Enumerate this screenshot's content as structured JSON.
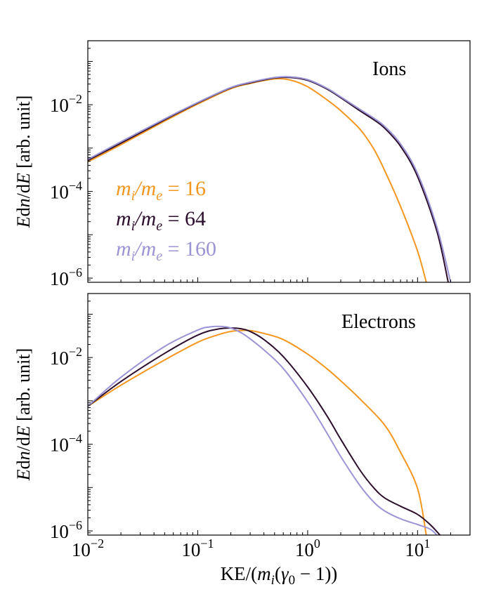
{
  "chart_data": [
    {
      "type": "line",
      "panel": "top",
      "title": "Ions",
      "ylabel": "Edn/dE [arb. unit]",
      "xlabel": "",
      "xscale": "log",
      "yscale": "log",
      "xlim": [
        0.01,
        30
      ],
      "ylim": [
        8e-07,
        0.3
      ],
      "yticks": [
        {
          "value": 0.01,
          "label": "10",
          "exp": "−2"
        },
        {
          "value": 0.0001,
          "label": "10",
          "exp": "−4"
        },
        {
          "value": 1e-06,
          "label": "10",
          "exp": "−6"
        }
      ],
      "legend_position": "center-left",
      "series": [
        {
          "name": "m_i/m_e = 16",
          "label_base": "m",
          "label_sub1": "i",
          "label_mid": "/m",
          "label_sub2": "e",
          "label_value": " = 16",
          "color": "#f5961e",
          "x": [
            0.01,
            0.02,
            0.05,
            0.1,
            0.2,
            0.3,
            0.5,
            0.7,
            1.0,
            1.5,
            2.0,
            3.0,
            4.0,
            5.0,
            7.0,
            10.0,
            12.0
          ],
          "y": [
            0.00048,
            0.0012,
            0.0042,
            0.0104,
            0.0235,
            0.031,
            0.0395,
            0.037,
            0.026,
            0.013,
            0.0073,
            0.0027,
            0.00095,
            0.00031,
            4.5e-05,
            4.2e-06,
            8e-07
          ]
        },
        {
          "name": "m_i/m_e = 64",
          "label_base": "m",
          "label_sub1": "i",
          "label_mid": "/m",
          "label_sub2": "e",
          "label_value": " = 64",
          "color": "#2d0f2d",
          "x": [
            0.01,
            0.02,
            0.05,
            0.1,
            0.2,
            0.3,
            0.5,
            0.7,
            1.0,
            1.5,
            2.0,
            3.0,
            4.0,
            5.0,
            7.0,
            10.0,
            15.0,
            19.0
          ],
          "y": [
            0.00052,
            0.0013,
            0.0045,
            0.011,
            0.0245,
            0.032,
            0.0415,
            0.0425,
            0.0365,
            0.023,
            0.0145,
            0.0072,
            0.0045,
            0.0029,
            0.0011,
            0.00022,
            1.2e-05,
            8e-07
          ]
        },
        {
          "name": "m_i/m_e = 160",
          "label_base": "m",
          "label_sub1": "i",
          "label_mid": "/m",
          "label_sub2": "e",
          "label_value": " = 160",
          "color": "#9b94d6",
          "x": [
            0.01,
            0.02,
            0.05,
            0.1,
            0.2,
            0.3,
            0.5,
            0.7,
            1.0,
            1.5,
            2.0,
            3.0,
            4.0,
            5.0,
            7.0,
            10.0,
            15.0,
            20.0
          ],
          "y": [
            0.00055,
            0.0014,
            0.0047,
            0.0113,
            0.025,
            0.033,
            0.0425,
            0.044,
            0.038,
            0.024,
            0.0152,
            0.0078,
            0.0049,
            0.0032,
            0.00125,
            0.00026,
            1.5e-05,
            8e-07
          ]
        }
      ]
    },
    {
      "type": "line",
      "panel": "bottom",
      "title": "Electrons",
      "ylabel": "Edn/dE [arb. unit]",
      "xlabel": "KE/(m_i(γ0 − 1))",
      "xscale": "log",
      "yscale": "log",
      "xlim": [
        0.01,
        30
      ],
      "ylim": [
        8e-07,
        0.3
      ],
      "xticks": [
        {
          "value": 0.01,
          "label": "10",
          "exp": "−2"
        },
        {
          "value": 0.1,
          "label": "10",
          "exp": "−1"
        },
        {
          "value": 1,
          "label": "10",
          "exp": "0"
        },
        {
          "value": 10,
          "label": "10",
          "exp": "1"
        }
      ],
      "yticks": [
        {
          "value": 0.01,
          "label": "10",
          "exp": "−2"
        },
        {
          "value": 0.0001,
          "label": "10",
          "exp": "−4"
        },
        {
          "value": 1e-06,
          "label": "10",
          "exp": "−6"
        }
      ],
      "series": [
        {
          "name": "m_i/m_e = 16",
          "color": "#f5961e",
          "x": [
            0.01,
            0.02,
            0.05,
            0.1,
            0.15,
            0.2,
            0.25,
            0.3,
            0.4,
            0.6,
            1.0,
            1.5,
            2.0,
            3.0,
            5.0,
            7.0,
            10.0,
            12.0
          ],
          "y": [
            0.00075,
            0.0023,
            0.0088,
            0.0225,
            0.033,
            0.04,
            0.042,
            0.042,
            0.036,
            0.026,
            0.012,
            0.0055,
            0.0029,
            0.0011,
            0.00028,
            6.5e-05,
            9.5e-06,
            8e-07
          ]
        },
        {
          "name": "m_i/m_e = 64",
          "color": "#2d0f2d",
          "x": [
            0.01,
            0.02,
            0.05,
            0.1,
            0.15,
            0.2,
            0.25,
            0.3,
            0.4,
            0.6,
            1.0,
            1.5,
            2.0,
            3.0,
            4.0,
            5.0,
            7.0,
            10.0,
            13.0,
            16.0
          ],
          "y": [
            0.00075,
            0.0028,
            0.0125,
            0.033,
            0.045,
            0.048,
            0.046,
            0.04,
            0.026,
            0.0105,
            0.0021,
            0.00045,
            0.00013,
            2.5e-05,
            9.8e-06,
            5.8e-06,
            3.7e-06,
            2.4e-06,
            1.4e-06,
            8e-07
          ]
        },
        {
          "name": "m_i/m_e = 160",
          "color": "#9b94d6",
          "x": [
            0.01,
            0.02,
            0.05,
            0.1,
            0.13,
            0.17,
            0.2,
            0.25,
            0.3,
            0.4,
            0.6,
            1.0,
            1.5,
            2.0,
            3.0,
            4.0,
            5.0,
            7.0,
            10.0,
            13.0,
            15.0
          ],
          "y": [
            0.00075,
            0.0035,
            0.018,
            0.043,
            0.051,
            0.052,
            0.048,
            0.037,
            0.027,
            0.015,
            0.0056,
            0.00095,
            0.00018,
            5.2e-05,
            1.1e-05,
            4.6e-06,
            2.9e-06,
            1.9e-06,
            1.4e-06,
            1.1e-06,
            8e-07
          ]
        }
      ]
    }
  ]
}
